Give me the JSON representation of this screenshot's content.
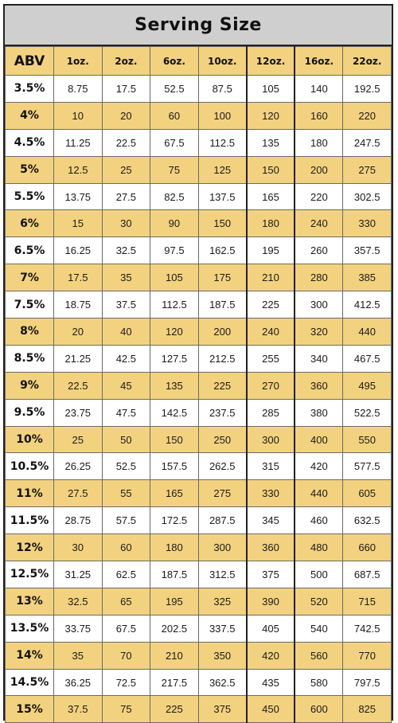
{
  "title": "Serving Size",
  "headers": [
    "ABV",
    "1oz.",
    "2oz.",
    "6oz.",
    "10oz.",
    "12oz.",
    "16oz.",
    "22oz."
  ],
  "rows": [
    [
      "3.5%",
      "8.75",
      "17.5",
      "52.5",
      "87.5",
      "105",
      "140",
      "192.5"
    ],
    [
      "4%",
      "10",
      "20",
      "60",
      "100",
      "120",
      "160",
      "220"
    ],
    [
      "4.5%",
      "11.25",
      "22.5",
      "67.5",
      "112.5",
      "135",
      "180",
      "247.5"
    ],
    [
      "5%",
      "12.5",
      "25",
      "75",
      "125",
      "150",
      "200",
      "275"
    ],
    [
      "5.5%",
      "13.75",
      "27.5",
      "82.5",
      "137.5",
      "165",
      "220",
      "302.5"
    ],
    [
      "6%",
      "15",
      "30",
      "90",
      "150",
      "180",
      "240",
      "330"
    ],
    [
      "6.5%",
      "16.25",
      "32.5",
      "97.5",
      "162.5",
      "195",
      "260",
      "357.5"
    ],
    [
      "7%",
      "17.5",
      "35",
      "105",
      "175",
      "210",
      "280",
      "385"
    ],
    [
      "7.5%",
      "18.75",
      "37.5",
      "112.5",
      "187.5",
      "225",
      "300",
      "412.5"
    ],
    [
      "8%",
      "20",
      "40",
      "120",
      "200",
      "240",
      "320",
      "440"
    ],
    [
      "8.5%",
      "21.25",
      "42.5",
      "127.5",
      "212.5",
      "255",
      "340",
      "467.5"
    ],
    [
      "9%",
      "22.5",
      "45",
      "135",
      "225",
      "270",
      "360",
      "495"
    ],
    [
      "9.5%",
      "23.75",
      "47.5",
      "142.5",
      "237.5",
      "285",
      "380",
      "522.5"
    ],
    [
      "10%",
      "25",
      "50",
      "150",
      "250",
      "300",
      "400",
      "550"
    ],
    [
      "10.5%",
      "26.25",
      "52.5",
      "157.5",
      "262.5",
      "315",
      "420",
      "577.5"
    ],
    [
      "11%",
      "27.5",
      "55",
      "165",
      "275",
      "330",
      "440",
      "605"
    ],
    [
      "11.5%",
      "28.75",
      "57.5",
      "172.5",
      "287.5",
      "345",
      "460",
      "632.5"
    ],
    [
      "12%",
      "30",
      "60",
      "180",
      "300",
      "360",
      "480",
      "660"
    ],
    [
      "12.5%",
      "31.25",
      "62.5",
      "187.5",
      "312.5",
      "375",
      "500",
      "687.5"
    ],
    [
      "13%",
      "32.5",
      "65",
      "195",
      "325",
      "390",
      "520",
      "715"
    ],
    [
      "13.5%",
      "33.75",
      "67.5",
      "202.5",
      "337.5",
      "405",
      "540",
      "742.5"
    ],
    [
      "14%",
      "35",
      "70",
      "210",
      "350",
      "420",
      "560",
      "770"
    ],
    [
      "14.5%",
      "36.25",
      "72.5",
      "217.5",
      "362.5",
      "435",
      "580",
      "797.5"
    ],
    [
      "15%",
      "37.5",
      "75",
      "225",
      "375",
      "450",
      "600",
      "825"
    ]
  ],
  "colors": {
    "row_alt": "#f3d27f",
    "title_bg": "#cfcfcf",
    "border": "#222222"
  }
}
